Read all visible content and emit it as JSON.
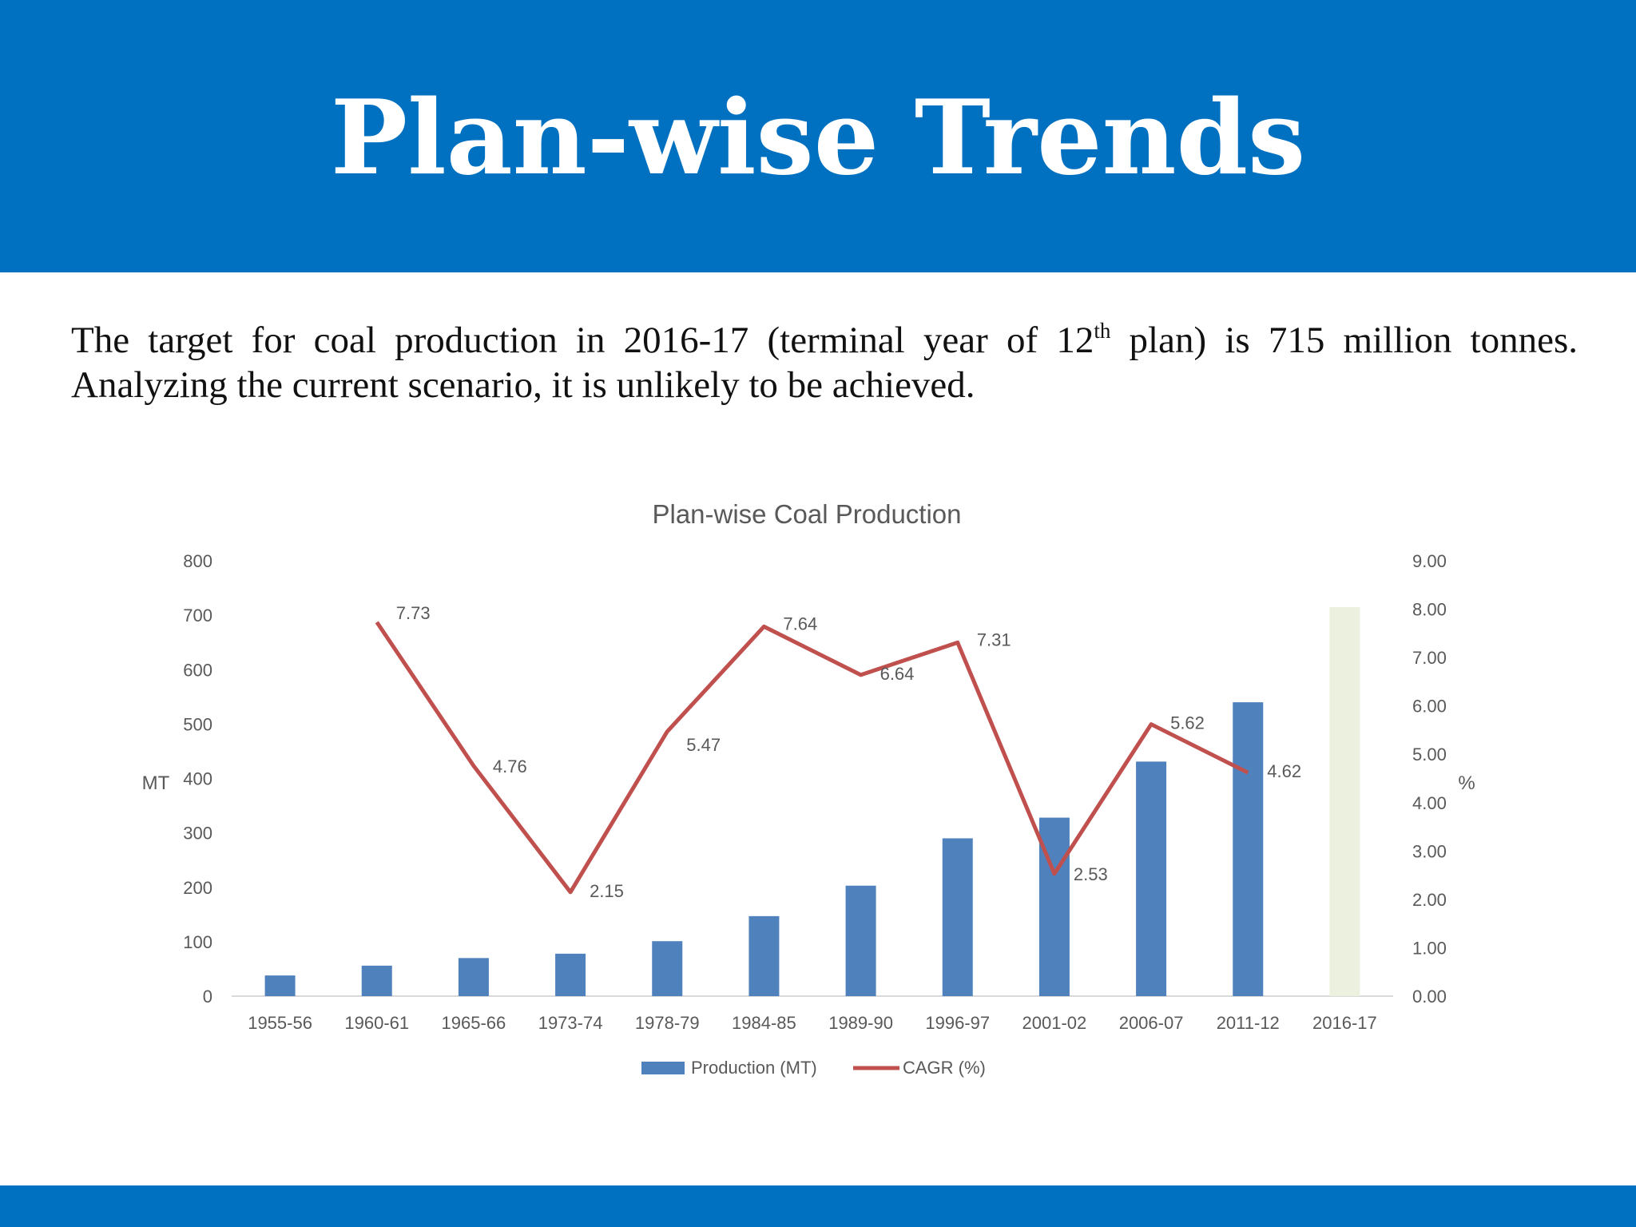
{
  "header": {
    "title": "Plan-wise Trends"
  },
  "intro": {
    "line1_part1": "The target for coal production in 2016-17 (terminal year of 12",
    "superscript": "th",
    "line1_part2": " plan) is 715 million tonnes. Analyzing the current scenario, it is unlikely to be achieved."
  },
  "colors": {
    "header_bg": "#0070c0",
    "bar": "#4f81bd",
    "target_bar": "#ebf1de",
    "line": "#c0504d"
  },
  "chart_data": {
    "type": "bar",
    "title": "Plan-wise Coal Production",
    "categories": [
      "1955-56",
      "1960-61",
      "1965-66",
      "1973-74",
      "1978-79",
      "1984-85",
      "1989-90",
      "1996-97",
      "2001-02",
      "2006-07",
      "2011-12",
      "2016-17"
    ],
    "ylabel": "MT",
    "ylim": [
      0,
      800
    ],
    "yticks": [
      "0",
      "100",
      "200",
      "300",
      "400",
      "500",
      "600",
      "700",
      "800"
    ],
    "y2label": "%",
    "y2lim": [
      0,
      9
    ],
    "y2ticks": [
      "0.00",
      "1.00",
      "2.00",
      "3.00",
      "4.00",
      "5.00",
      "6.00",
      "7.00",
      "8.00",
      "9.00"
    ],
    "legend_position": "bottom",
    "grid": false,
    "series": [
      {
        "name": "Production (MT)",
        "kind": "bar",
        "axis": "left",
        "values": [
          38,
          56,
          70,
          78,
          101,
          147,
          203,
          290,
          328,
          431,
          540,
          715
        ],
        "highlight_last_as_target": true
      },
      {
        "name": "CAGR (%)",
        "kind": "line",
        "axis": "right",
        "values": [
          null,
          7.73,
          4.76,
          2.15,
          5.47,
          7.64,
          6.64,
          7.31,
          2.53,
          5.62,
          4.62,
          null
        ],
        "labels": [
          "",
          "7.73",
          "4.76",
          "2.15",
          "5.47",
          "7.64",
          "6.64",
          "7.31",
          "2.53",
          "5.62",
          "4.62",
          ""
        ]
      }
    ]
  }
}
